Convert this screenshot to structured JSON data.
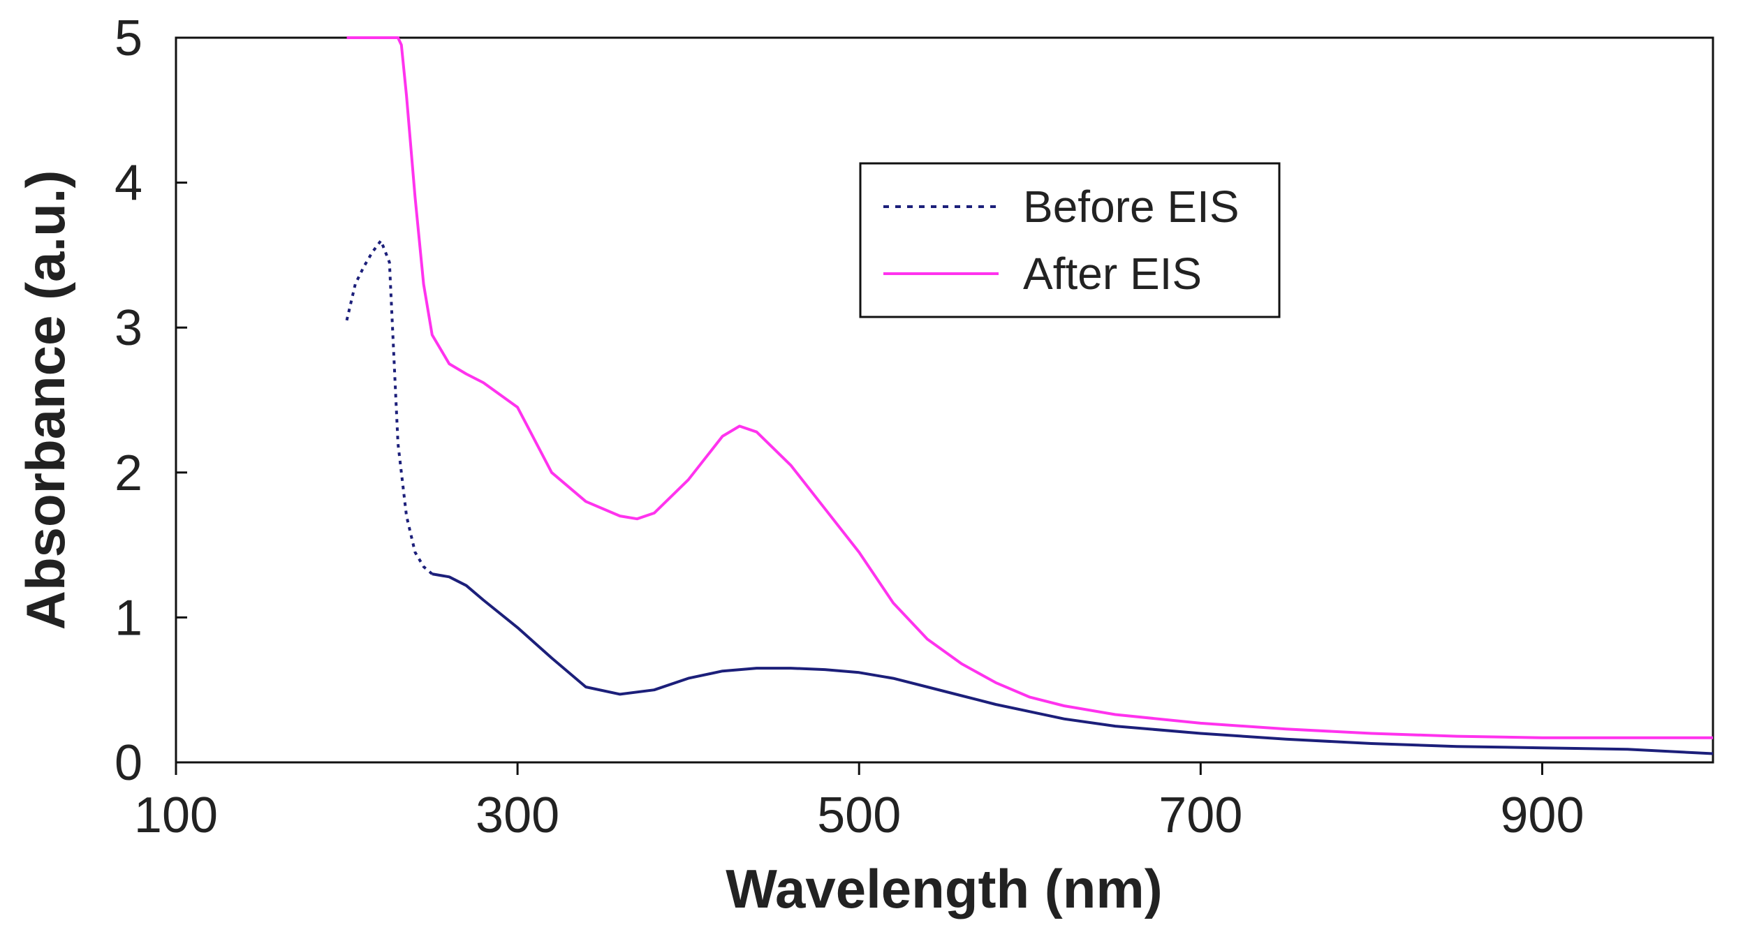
{
  "chart_data": {
    "type": "line",
    "title": "",
    "xlabel": "Wavelength (nm)",
    "ylabel": "Absorbance (a.u.)",
    "xlim": [
      100,
      1000
    ],
    "ylim": [
      0,
      5
    ],
    "xticks": [
      100,
      300,
      500,
      700,
      900
    ],
    "yticks": [
      0,
      1,
      2,
      3,
      4,
      5
    ],
    "grid": false,
    "legend_position": "top-right",
    "series": [
      {
        "name": "Before EIS",
        "color": "#1c1f7a",
        "style": "dotted-then-solid",
        "x": [
          200,
          205,
          210,
          215,
          220,
          225,
          230,
          235,
          240,
          245,
          250,
          260,
          270,
          280,
          300,
          320,
          340,
          360,
          380,
          400,
          420,
          440,
          460,
          480,
          500,
          520,
          540,
          560,
          580,
          600,
          620,
          650,
          700,
          750,
          800,
          850,
          900,
          950,
          1000
        ],
        "y": [
          3.05,
          3.3,
          3.42,
          3.52,
          3.6,
          3.45,
          2.2,
          1.7,
          1.45,
          1.35,
          1.3,
          1.28,
          1.22,
          1.12,
          0.93,
          0.72,
          0.52,
          0.47,
          0.5,
          0.58,
          0.63,
          0.65,
          0.65,
          0.64,
          0.62,
          0.58,
          0.52,
          0.46,
          0.4,
          0.35,
          0.3,
          0.25,
          0.2,
          0.16,
          0.13,
          0.11,
          0.1,
          0.09,
          0.06
        ]
      },
      {
        "name": "After EIS",
        "color": "#ff33ee",
        "style": "solid",
        "x": [
          200,
          210,
          220,
          230,
          232,
          235,
          240,
          245,
          250,
          260,
          270,
          280,
          300,
          320,
          340,
          360,
          370,
          380,
          400,
          420,
          430,
          440,
          460,
          480,
          500,
          520,
          540,
          560,
          580,
          600,
          620,
          650,
          700,
          750,
          800,
          850,
          900,
          950,
          1000
        ],
        "y": [
          5,
          5,
          5,
          5,
          4.95,
          4.6,
          3.9,
          3.3,
          2.95,
          2.75,
          2.68,
          2.62,
          2.45,
          2.0,
          1.8,
          1.7,
          1.68,
          1.72,
          1.95,
          2.25,
          2.32,
          2.28,
          2.05,
          1.75,
          1.45,
          1.1,
          0.85,
          0.68,
          0.55,
          0.45,
          0.39,
          0.33,
          0.27,
          0.23,
          0.2,
          0.18,
          0.17,
          0.17,
          0.17
        ]
      }
    ]
  }
}
